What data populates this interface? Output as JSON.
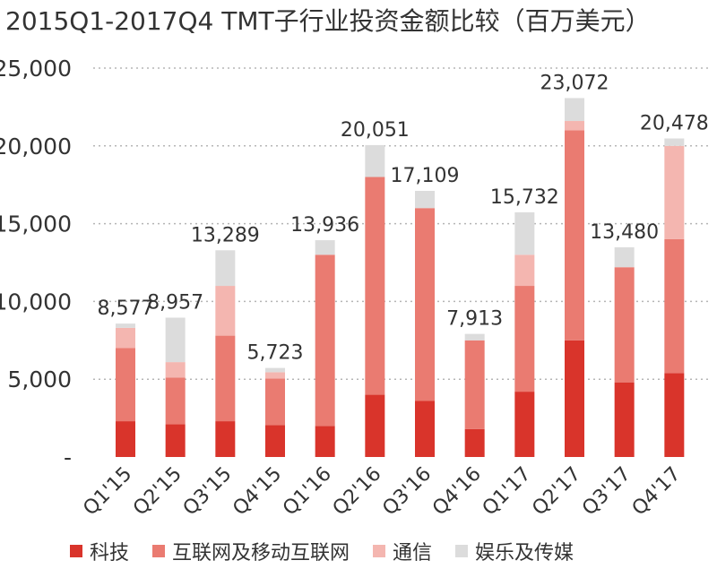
{
  "title": "2015Q1-2017Q4 TMT子行业投资金额比较（百万美元）",
  "chart_data": {
    "type": "bar",
    "stacked": true,
    "categories": [
      "Q1'15",
      "Q2'15",
      "Q3'15",
      "Q4'15",
      "Q1'16",
      "Q2'16",
      "Q3'16",
      "Q4'16",
      "Q1'17",
      "Q2'17",
      "Q3'17",
      "Q4'17"
    ],
    "series": [
      {
        "name": "科技",
        "color": "#d9342b",
        "values": [
          2300,
          2100,
          2300,
          2050,
          2000,
          4000,
          3600,
          1800,
          4200,
          7500,
          4800,
          5400
        ]
      },
      {
        "name": "互联网及移动互联网",
        "color": "#ea7b71",
        "values": [
          4700,
          3000,
          5500,
          3000,
          11000,
          14000,
          12400,
          5700,
          6800,
          13500,
          7400,
          8600
        ]
      },
      {
        "name": "通信",
        "color": "#f4b6b0",
        "values": [
          1300,
          1000,
          3200,
          400,
          0,
          0,
          0,
          0,
          2000,
          600,
          0,
          6000
        ]
      },
      {
        "name": "娱乐及传媒",
        "color": "#dcdcdc",
        "values": [
          277,
          2857,
          2289,
          273,
          936,
          2051,
          1109,
          413,
          2732,
          1472,
          1280,
          478
        ]
      }
    ],
    "totals": [
      8577,
      8957,
      13289,
      5723,
      13936,
      20051,
      17109,
      7913,
      15732,
      23072,
      13480,
      20478
    ],
    "total_labels": [
      "8,577",
      "8,957",
      "13,289",
      "5,723",
      "13,936",
      "20,051",
      "17,109",
      "7,913",
      "15,732",
      "23,072",
      "13,480",
      "20,478"
    ],
    "yticks": [
      0,
      5000,
      10000,
      15000,
      20000,
      25000
    ],
    "ytick_labels": [
      "-",
      "5,000",
      "10,000",
      "15,000",
      "20,000",
      "25,000"
    ],
    "ylim": [
      0,
      25000
    ],
    "grid": true,
    "legend_position": "bottom"
  }
}
